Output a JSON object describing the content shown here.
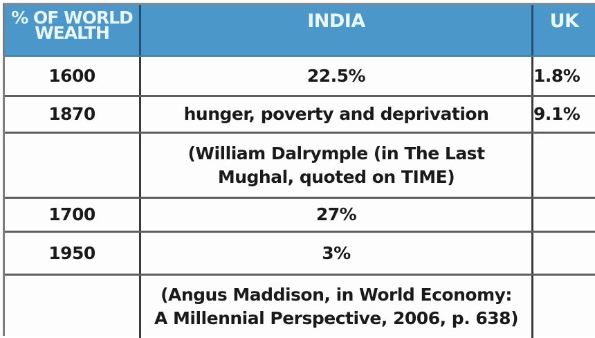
{
  "table": {
    "headers": [
      "% OF WORLD WEALTH",
      "INDIA",
      "UK"
    ],
    "header_col1_lines": [
      "% OF WORLD",
      "WEALTH"
    ],
    "rows": [
      {
        "year": "1600",
        "india": "22.5%",
        "uk": "1.8%"
      },
      {
        "year": "1870",
        "india": "hunger, poverty and deprivation",
        "uk": "9.1%"
      },
      {
        "year": "",
        "india_lines": [
          "(William Dalrymple (in The Last",
          "Mughal, quoted on TIME)"
        ],
        "uk": ""
      },
      {
        "year": "1700",
        "india": "27%",
        "uk": ""
      },
      {
        "year": "1950",
        "india": "3%",
        "uk": ""
      },
      {
        "year": "",
        "india_lines": [
          "(Angus Maddison, in World Economy:",
          "A Millennial Perspective, 2006, p. 638)"
        ],
        "uk": ""
      }
    ]
  },
  "colors": {
    "header_bg": "#4b97c9",
    "header_text": "#e8f7fb",
    "body_text": "#1a1a1a",
    "grid_lines": "#3a3a3a"
  }
}
